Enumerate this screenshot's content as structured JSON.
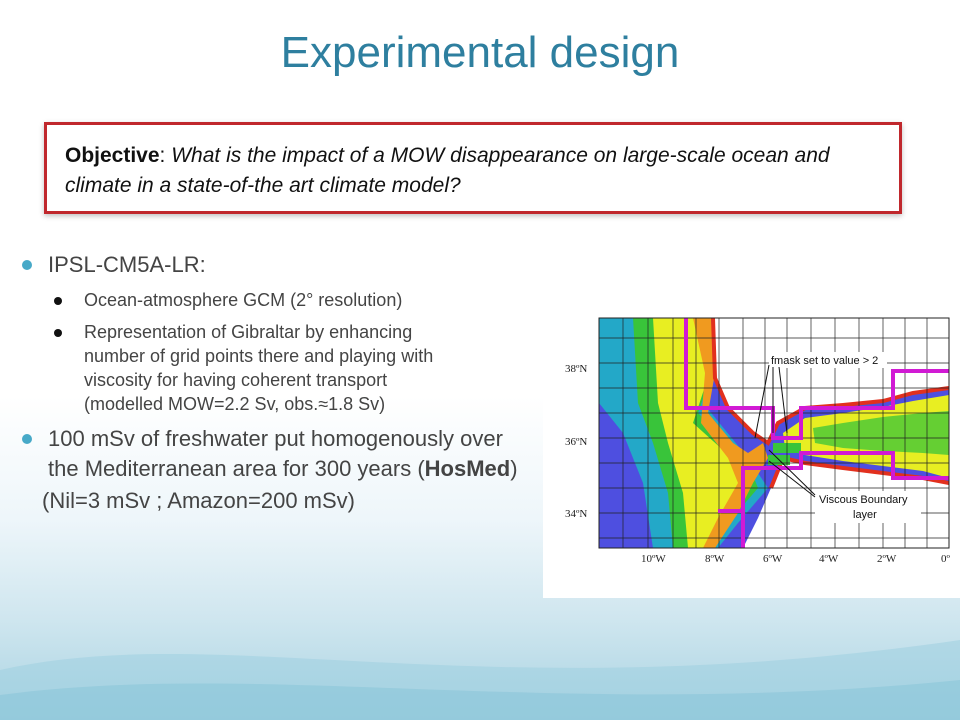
{
  "slide": {
    "title": "Experimental design"
  },
  "objective": {
    "label": "Objective",
    "colon": ":",
    "question": "What is the impact of a MOW disappearance on large-scale ocean and climate in a state-of-the art climate model?"
  },
  "bullets": [
    {
      "text": "IPSL-CM5A-LR:",
      "sub": [
        "Ocean-atmosphere GCM (2° resolution)",
        "Representation of Gibraltar by enhancing number of grid points there and playing with viscosity for having coherent transport (modelled MOW=2.2 Sv, obs.≈1.8 Sv)"
      ]
    },
    {
      "text_before": "100 mSv of freshwater put homogenously over the Mediterranean area for 300 years (",
      "text_bold": "HosMed",
      "text_after": ")"
    }
  ],
  "note": "(Nil=3 mSv ; Amazon=200 mSv)",
  "map": {
    "lat_labels": [
      "38ºN",
      "36ºN",
      "34ºN"
    ],
    "lon_labels": [
      "10ºW",
      "8ºW",
      "6ºW",
      "4ºW",
      "2ºW",
      "0º"
    ],
    "annotation_fmask": "fmask set to value > 2",
    "annotation_viscous_1": "Viscous Boundary",
    "annotation_viscous_2": "layer",
    "colors": {
      "deep": "#4e4fe0",
      "mid": "#23a8c8",
      "green": "#39c43a",
      "yellow": "#e8ee22",
      "orange": "#f09a1f",
      "red": "#e2301e",
      "boundary": "#d11ad4"
    }
  }
}
